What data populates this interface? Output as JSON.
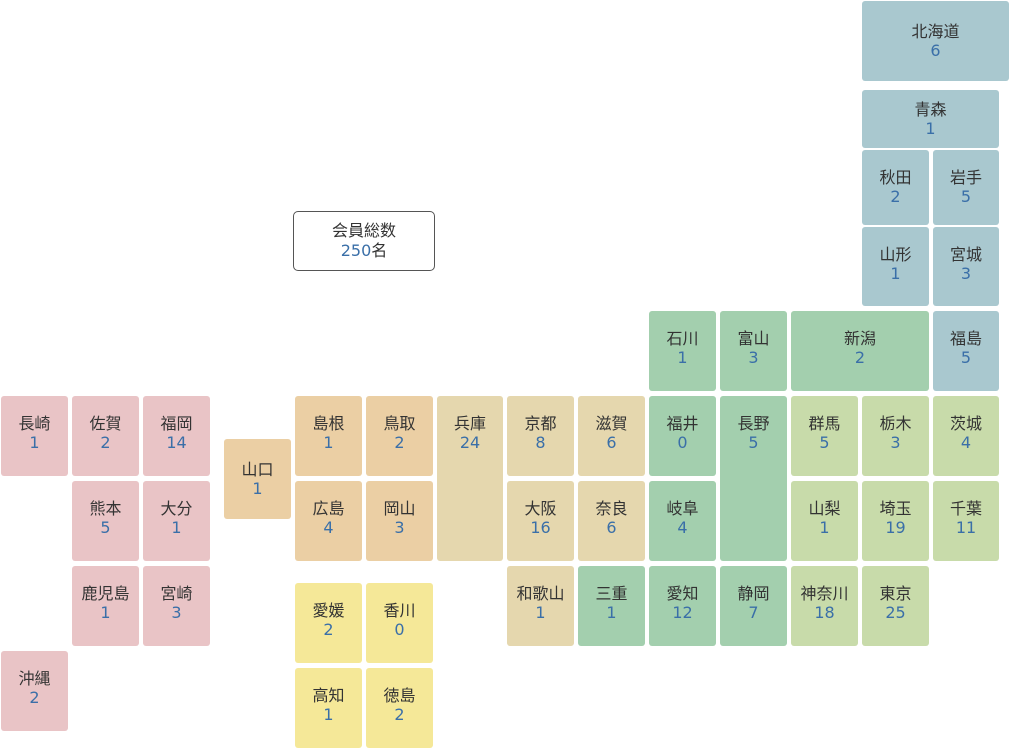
{
  "summary": {
    "label": "会員総数",
    "count": "250",
    "unit": "名"
  },
  "region_colors": {
    "hokkaido_tohoku": "#a9c8cf",
    "chubu": "#a3cfae",
    "kanto": "#c8dbaa",
    "kinki": "#e5d7ae",
    "chugoku": "#ebcfa4",
    "shikoku": "#f5e898",
    "kyushu": "#e9c4c6"
  },
  "prefectures": [
    {
      "id": "hokkaido",
      "name": "北海道",
      "count": "6",
      "region": "hokkaido_tohoku"
    },
    {
      "id": "aomori",
      "name": "青森",
      "count": "1",
      "region": "hokkaido_tohoku"
    },
    {
      "id": "akita",
      "name": "秋田",
      "count": "2",
      "region": "hokkaido_tohoku"
    },
    {
      "id": "iwate",
      "name": "岩手",
      "count": "5",
      "region": "hokkaido_tohoku"
    },
    {
      "id": "yamagata",
      "name": "山形",
      "count": "1",
      "region": "hokkaido_tohoku"
    },
    {
      "id": "miyagi",
      "name": "宮城",
      "count": "3",
      "region": "hokkaido_tohoku"
    },
    {
      "id": "fukushima",
      "name": "福島",
      "count": "5",
      "region": "hokkaido_tohoku"
    },
    {
      "id": "ishikawa",
      "name": "石川",
      "count": "1",
      "region": "chubu"
    },
    {
      "id": "toyama",
      "name": "富山",
      "count": "3",
      "region": "chubu"
    },
    {
      "id": "niigata",
      "name": "新潟",
      "count": "2",
      "region": "chubu"
    },
    {
      "id": "fukui",
      "name": "福井",
      "count": "0",
      "region": "chubu"
    },
    {
      "id": "nagano",
      "name": "長野",
      "count": "5",
      "region": "chubu"
    },
    {
      "id": "gifu",
      "name": "岐阜",
      "count": "4",
      "region": "chubu"
    },
    {
      "id": "aichi",
      "name": "愛知",
      "count": "12",
      "region": "chubu"
    },
    {
      "id": "shizuoka",
      "name": "静岡",
      "count": "7",
      "region": "chubu"
    },
    {
      "id": "mie",
      "name": "三重",
      "count": "1",
      "region": "chubu"
    },
    {
      "id": "gunma",
      "name": "群馬",
      "count": "5",
      "region": "kanto"
    },
    {
      "id": "tochigi",
      "name": "栃木",
      "count": "3",
      "region": "kanto"
    },
    {
      "id": "ibaraki",
      "name": "茨城",
      "count": "4",
      "region": "kanto"
    },
    {
      "id": "yamanashi",
      "name": "山梨",
      "count": "1",
      "region": "kanto"
    },
    {
      "id": "saitama",
      "name": "埼玉",
      "count": "19",
      "region": "kanto"
    },
    {
      "id": "chiba",
      "name": "千葉",
      "count": "11",
      "region": "kanto"
    },
    {
      "id": "kanagawa",
      "name": "神奈川",
      "count": "18",
      "region": "kanto"
    },
    {
      "id": "tokyo",
      "name": "東京",
      "count": "25",
      "region": "kanto"
    },
    {
      "id": "hyogo",
      "name": "兵庫",
      "count": "24",
      "region": "kinki"
    },
    {
      "id": "kyoto",
      "name": "京都",
      "count": "8",
      "region": "kinki"
    },
    {
      "id": "shiga",
      "name": "滋賀",
      "count": "6",
      "region": "kinki"
    },
    {
      "id": "osaka",
      "name": "大阪",
      "count": "16",
      "region": "kinki"
    },
    {
      "id": "nara",
      "name": "奈良",
      "count": "6",
      "region": "kinki"
    },
    {
      "id": "wakayama",
      "name": "和歌山",
      "count": "1",
      "region": "kinki"
    },
    {
      "id": "shimane",
      "name": "島根",
      "count": "1",
      "region": "chugoku"
    },
    {
      "id": "tottori",
      "name": "鳥取",
      "count": "2",
      "region": "chugoku"
    },
    {
      "id": "yamaguchi",
      "name": "山口",
      "count": "1",
      "region": "chugoku"
    },
    {
      "id": "hiroshima",
      "name": "広島",
      "count": "4",
      "region": "chugoku"
    },
    {
      "id": "okayama",
      "name": "岡山",
      "count": "3",
      "region": "chugoku"
    },
    {
      "id": "ehime",
      "name": "愛媛",
      "count": "2",
      "region": "shikoku"
    },
    {
      "id": "kagawa",
      "name": "香川",
      "count": "0",
      "region": "shikoku"
    },
    {
      "id": "kochi",
      "name": "高知",
      "count": "1",
      "region": "shikoku"
    },
    {
      "id": "tokushima",
      "name": "徳島",
      "count": "2",
      "region": "shikoku"
    },
    {
      "id": "nagasaki",
      "name": "長崎",
      "count": "1",
      "region": "kyushu"
    },
    {
      "id": "saga",
      "name": "佐賀",
      "count": "2",
      "region": "kyushu"
    },
    {
      "id": "fukuoka",
      "name": "福岡",
      "count": "14",
      "region": "kyushu"
    },
    {
      "id": "kumamoto",
      "name": "熊本",
      "count": "5",
      "region": "kyushu"
    },
    {
      "id": "oita",
      "name": "大分",
      "count": "1",
      "region": "kyushu"
    },
    {
      "id": "kagoshima",
      "name": "鹿児島",
      "count": "1",
      "region": "kyushu"
    },
    {
      "id": "miyazaki",
      "name": "宮崎",
      "count": "3",
      "region": "kyushu"
    },
    {
      "id": "okinawa",
      "name": "沖縄",
      "count": "2",
      "region": "kyushu"
    }
  ]
}
